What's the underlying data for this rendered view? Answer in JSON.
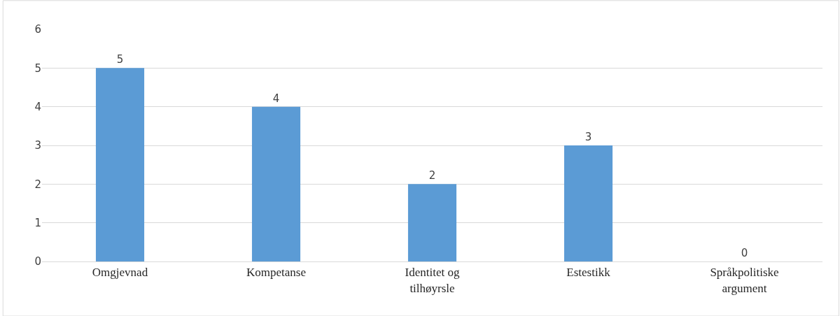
{
  "chart_data": {
    "type": "bar",
    "categories": [
      "Omgjevnad",
      "Kompetanse",
      "Identitet og tilhøyrsle",
      "Estestikk",
      "Språkpolitiske argument"
    ],
    "values": [
      5,
      4,
      2,
      3,
      0
    ],
    "color": "#5b9bd5",
    "ylim": [
      0,
      6
    ],
    "yticks": [
      0,
      1,
      2,
      3,
      4,
      5,
      6
    ],
    "grid": "y",
    "data_labels": true
  }
}
